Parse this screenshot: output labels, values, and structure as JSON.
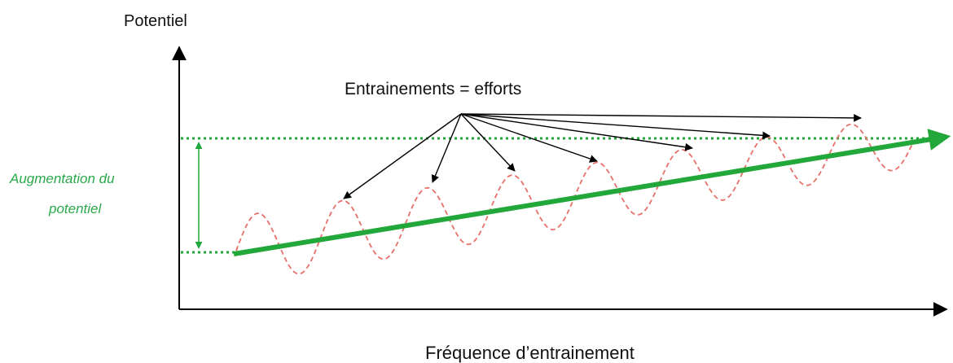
{
  "y_axis_label": "Potentiel",
  "x_axis_label": "Fréquence d’entrainement",
  "annotation": "Entrainements = efforts",
  "side_label": {
    "line1": "Augmentation du",
    "line2": "potentiel"
  },
  "colors": {
    "trend": "#22a83a",
    "wave": "#e8706a",
    "axes": "#000000",
    "side_label": "#2aa84a"
  },
  "wave_cycles": 8
}
